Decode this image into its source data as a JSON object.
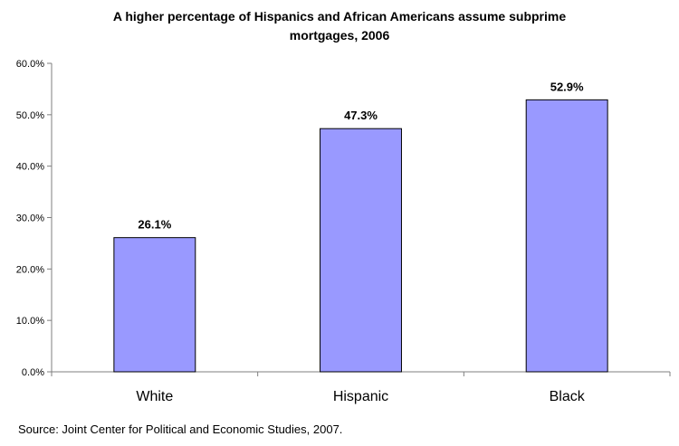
{
  "chart_data": {
    "type": "bar",
    "title_line1": "A higher percentage of Hispanics and African Americans assume subprime",
    "title_line2": "mortgages, 2006",
    "categories": [
      "White",
      "Hispanic",
      "Black"
    ],
    "values": [
      26.1,
      47.3,
      52.9
    ],
    "value_labels": [
      "26.1%",
      "47.3%",
      "52.9%"
    ],
    "ylim": [
      0,
      60
    ],
    "yticks": [
      0,
      10,
      20,
      30,
      40,
      50,
      60
    ],
    "ytick_labels": [
      "0.0%",
      "10.0%",
      "20.0%",
      "30.0%",
      "40.0%",
      "50.0%",
      "60.0%"
    ],
    "xlabel": "",
    "ylabel": "",
    "grid": false,
    "bar_color": "#9999ff",
    "source": "Source: Joint Center for Political and Economic Studies, 2007."
  }
}
